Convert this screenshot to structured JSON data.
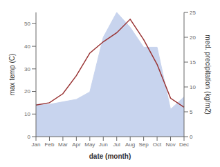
{
  "chart_data": {
    "type": "line",
    "categories": [
      "Jan",
      "Feb",
      "Mar",
      "Apr",
      "May",
      "Jun",
      "Jul",
      "Aug",
      "Sep",
      "Oct",
      "Nov",
      "Dec"
    ],
    "xlabel": "date (month)",
    "ylabel": "max temp (C)",
    "y2label": "med. precipitation (kg/m2)",
    "series": [
      {
        "type": "area",
        "axis": "y2",
        "color": "#c8d4ee",
        "values": [
          6.5,
          6.5,
          7,
          7.5,
          9,
          20,
          25,
          22,
          18,
          18,
          5.5,
          8
        ]
      },
      {
        "type": "line",
        "color": "#993333",
        "values": [
          14,
          15,
          19,
          27,
          37,
          42,
          46,
          52,
          43,
          32,
          17,
          13
        ]
      }
    ],
    "ylim": [
      0,
      55
    ],
    "yticks": [
      0,
      10,
      20,
      30,
      40,
      50
    ],
    "y2lim": [
      0,
      25
    ],
    "y2ticks": [
      0,
      5,
      10,
      15,
      20,
      25
    ],
    "grid": false
  }
}
